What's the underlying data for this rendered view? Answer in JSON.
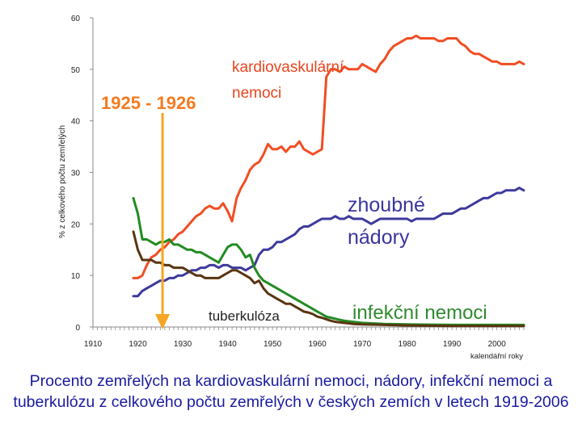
{
  "chart_data": {
    "type": "line",
    "ylabel": "% z celkového počtu zemřelých",
    "xlabel": "kalendářní roky",
    "xlim": [
      1910,
      2006
    ],
    "ylim": [
      0,
      60
    ],
    "x_ticks": [
      1910,
      1920,
      1930,
      1940,
      1950,
      1960,
      1970,
      1980,
      1990,
      2000
    ],
    "y_ticks": [
      0,
      10,
      20,
      30,
      40,
      50,
      60
    ],
    "grid": false,
    "legend": "none",
    "highlight": {
      "label": "1925 - 1926",
      "year": 1925.5,
      "color": "#f5a623"
    },
    "series": [
      {
        "key": "kardio",
        "color": "#f04e23",
        "points": [
          [
            1919,
            9.5
          ],
          [
            1920,
            9.5
          ],
          [
            1921,
            10
          ],
          [
            1922,
            12
          ],
          [
            1923,
            13.5
          ],
          [
            1924,
            14
          ],
          [
            1925,
            15
          ],
          [
            1926,
            15.5
          ],
          [
            1927,
            16.5
          ],
          [
            1928,
            17
          ],
          [
            1929,
            18
          ],
          [
            1930,
            18.5
          ],
          [
            1931,
            19.5
          ],
          [
            1932,
            20.5
          ],
          [
            1933,
            21.5
          ],
          [
            1934,
            22
          ],
          [
            1935,
            23
          ],
          [
            1936,
            23.5
          ],
          [
            1937,
            23
          ],
          [
            1938,
            23
          ],
          [
            1939,
            24
          ],
          [
            1940,
            22.5
          ],
          [
            1941,
            20.5
          ],
          [
            1942,
            25
          ],
          [
            1943,
            27
          ],
          [
            1944,
            28.5
          ],
          [
            1945,
            30.5
          ],
          [
            1946,
            31.5
          ],
          [
            1947,
            32
          ],
          [
            1948,
            33.5
          ],
          [
            1949,
            35.5
          ],
          [
            1950,
            34.5
          ],
          [
            1951,
            34.5
          ],
          [
            1952,
            35
          ],
          [
            1953,
            34
          ],
          [
            1954,
            35
          ],
          [
            1955,
            35
          ],
          [
            1956,
            36
          ],
          [
            1957,
            34.5
          ],
          [
            1958,
            34
          ],
          [
            1959,
            33.5
          ],
          [
            1960,
            34
          ],
          [
            1961,
            34.5
          ],
          [
            1962,
            48.5
          ],
          [
            1963,
            50
          ],
          [
            1964,
            50
          ],
          [
            1965,
            49.5
          ],
          [
            1966,
            50.5
          ],
          [
            1967,
            50
          ],
          [
            1968,
            50
          ],
          [
            1969,
            50
          ],
          [
            1970,
            51
          ],
          [
            1971,
            50.5
          ],
          [
            1972,
            50
          ],
          [
            1973,
            49.5
          ],
          [
            1974,
            51
          ],
          [
            1975,
            52
          ],
          [
            1976,
            53.5
          ],
          [
            1977,
            54.5
          ],
          [
            1978,
            55
          ],
          [
            1979,
            55.5
          ],
          [
            1980,
            56
          ],
          [
            1981,
            56
          ],
          [
            1982,
            56.5
          ],
          [
            1983,
            56
          ],
          [
            1984,
            56
          ],
          [
            1985,
            56
          ],
          [
            1986,
            56
          ],
          [
            1987,
            55.5
          ],
          [
            1988,
            55.5
          ],
          [
            1989,
            56
          ],
          [
            1990,
            56
          ],
          [
            1991,
            56
          ],
          [
            1992,
            55
          ],
          [
            1993,
            54.5
          ],
          [
            1994,
            53.5
          ],
          [
            1995,
            53
          ],
          [
            1996,
            53
          ],
          [
            1997,
            52.5
          ],
          [
            1998,
            52
          ],
          [
            1999,
            51.5
          ],
          [
            2000,
            51.5
          ],
          [
            2001,
            51
          ],
          [
            2002,
            51
          ],
          [
            2003,
            51
          ],
          [
            2004,
            51
          ],
          [
            2005,
            51.5
          ],
          [
            2006,
            51
          ]
        ]
      },
      {
        "key": "nadory",
        "color": "#3d3a9c",
        "points": [
          [
            1919,
            6
          ],
          [
            1920,
            6
          ],
          [
            1921,
            7
          ],
          [
            1922,
            7.5
          ],
          [
            1923,
            8
          ],
          [
            1924,
            8.5
          ],
          [
            1925,
            9
          ],
          [
            1926,
            9
          ],
          [
            1927,
            9.5
          ],
          [
            1928,
            9.5
          ],
          [
            1929,
            10
          ],
          [
            1930,
            10
          ],
          [
            1931,
            10.5
          ],
          [
            1932,
            11
          ],
          [
            1933,
            11
          ],
          [
            1934,
            11.5
          ],
          [
            1935,
            11.5
          ],
          [
            1936,
            12
          ],
          [
            1937,
            12
          ],
          [
            1938,
            11.5
          ],
          [
            1939,
            12
          ],
          [
            1940,
            12
          ],
          [
            1941,
            11.5
          ],
          [
            1942,
            11.5
          ],
          [
            1943,
            11.5
          ],
          [
            1944,
            11
          ],
          [
            1945,
            11.5
          ],
          [
            1946,
            12
          ],
          [
            1947,
            14
          ],
          [
            1948,
            15
          ],
          [
            1949,
            15
          ],
          [
            1950,
            15.5
          ],
          [
            1951,
            16.5
          ],
          [
            1952,
            16.5
          ],
          [
            1953,
            17
          ],
          [
            1954,
            17.5
          ],
          [
            1955,
            18
          ],
          [
            1956,
            19
          ],
          [
            1957,
            19.5
          ],
          [
            1958,
            19.5
          ],
          [
            1959,
            20
          ],
          [
            1960,
            20.5
          ],
          [
            1961,
            21
          ],
          [
            1962,
            21
          ],
          [
            1963,
            21
          ],
          [
            1964,
            21.5
          ],
          [
            1965,
            21
          ],
          [
            1966,
            21
          ],
          [
            1967,
            21.5
          ],
          [
            1968,
            21
          ],
          [
            1969,
            21
          ],
          [
            1970,
            21
          ],
          [
            1971,
            20.5
          ],
          [
            1972,
            20
          ],
          [
            1973,
            20.5
          ],
          [
            1974,
            21
          ],
          [
            1975,
            21
          ],
          [
            1976,
            21
          ],
          [
            1977,
            21
          ],
          [
            1978,
            21
          ],
          [
            1979,
            21
          ],
          [
            1980,
            21
          ],
          [
            1981,
            20.5
          ],
          [
            1982,
            21
          ],
          [
            1983,
            21
          ],
          [
            1984,
            21
          ],
          [
            1985,
            21
          ],
          [
            1986,
            21
          ],
          [
            1987,
            21.5
          ],
          [
            1988,
            22
          ],
          [
            1989,
            22
          ],
          [
            1990,
            22
          ],
          [
            1991,
            22.5
          ],
          [
            1992,
            23
          ],
          [
            1993,
            23
          ],
          [
            1994,
            23.5
          ],
          [
            1995,
            24
          ],
          [
            1996,
            24.5
          ],
          [
            1997,
            25
          ],
          [
            1998,
            25
          ],
          [
            1999,
            25.5
          ],
          [
            2000,
            26
          ],
          [
            2001,
            26
          ],
          [
            2002,
            26.5
          ],
          [
            2003,
            26.5
          ],
          [
            2004,
            26.5
          ],
          [
            2005,
            27
          ],
          [
            2006,
            26.5
          ]
        ]
      },
      {
        "key": "infekcni",
        "color": "#228b22",
        "points": [
          [
            1919,
            25
          ],
          [
            1920,
            22
          ],
          [
            1921,
            17
          ],
          [
            1922,
            17
          ],
          [
            1923,
            16.5
          ],
          [
            1924,
            16
          ],
          [
            1925,
            16.5
          ],
          [
            1926,
            16.5
          ],
          [
            1927,
            17
          ],
          [
            1928,
            16
          ],
          [
            1929,
            16
          ],
          [
            1930,
            15.5
          ],
          [
            1931,
            15
          ],
          [
            1932,
            15
          ],
          [
            1933,
            14.5
          ],
          [
            1934,
            14.5
          ],
          [
            1935,
            14
          ],
          [
            1936,
            13.5
          ],
          [
            1937,
            13
          ],
          [
            1938,
            12.5
          ],
          [
            1939,
            14
          ],
          [
            1940,
            15.5
          ],
          [
            1941,
            16
          ],
          [
            1942,
            16
          ],
          [
            1943,
            15
          ],
          [
            1944,
            13.5
          ],
          [
            1945,
            14
          ],
          [
            1946,
            11.5
          ],
          [
            1947,
            10
          ],
          [
            1948,
            9
          ],
          [
            1949,
            8.5
          ],
          [
            1950,
            8
          ],
          [
            1951,
            7.5
          ],
          [
            1952,
            7
          ],
          [
            1953,
            6.5
          ],
          [
            1954,
            6
          ],
          [
            1955,
            5.5
          ],
          [
            1956,
            5
          ],
          [
            1957,
            4.5
          ],
          [
            1958,
            4
          ],
          [
            1959,
            3.5
          ],
          [
            1960,
            3
          ],
          [
            1961,
            2.5
          ],
          [
            1962,
            2
          ],
          [
            1963,
            1.8
          ],
          [
            1964,
            1.6
          ],
          [
            1965,
            1.4
          ],
          [
            1966,
            1.2
          ],
          [
            1967,
            1.1
          ],
          [
            1968,
            1
          ],
          [
            1969,
            0.9
          ],
          [
            1970,
            0.8
          ],
          [
            1975,
            0.6
          ],
          [
            1980,
            0.5
          ],
          [
            1990,
            0.4
          ],
          [
            2000,
            0.4
          ],
          [
            2006,
            0.4
          ]
        ]
      },
      {
        "key": "tuberkuloza",
        "color": "#5a3511",
        "points": [
          [
            1919,
            18.5
          ],
          [
            1920,
            15
          ],
          [
            1921,
            13
          ],
          [
            1922,
            13
          ],
          [
            1923,
            13
          ],
          [
            1924,
            12.5
          ],
          [
            1925,
            12.5
          ],
          [
            1926,
            12
          ],
          [
            1927,
            12
          ],
          [
            1928,
            11.5
          ],
          [
            1929,
            11.5
          ],
          [
            1930,
            11.5
          ],
          [
            1931,
            11
          ],
          [
            1932,
            10.5
          ],
          [
            1933,
            10
          ],
          [
            1934,
            10
          ],
          [
            1935,
            9.5
          ],
          [
            1936,
            9.5
          ],
          [
            1937,
            9.5
          ],
          [
            1938,
            9.5
          ],
          [
            1939,
            10
          ],
          [
            1940,
            10.5
          ],
          [
            1941,
            11
          ],
          [
            1942,
            11
          ],
          [
            1943,
            10.5
          ],
          [
            1944,
            10
          ],
          [
            1945,
            9.5
          ],
          [
            1946,
            8.5
          ],
          [
            1947,
            9
          ],
          [
            1948,
            7.5
          ],
          [
            1949,
            6.5
          ],
          [
            1950,
            6
          ],
          [
            1951,
            5.5
          ],
          [
            1952,
            5
          ],
          [
            1953,
            4.5
          ],
          [
            1954,
            4.5
          ],
          [
            1955,
            4
          ],
          [
            1956,
            3.5
          ],
          [
            1957,
            3
          ],
          [
            1958,
            2.8
          ],
          [
            1959,
            2.5
          ],
          [
            1960,
            2
          ],
          [
            1961,
            1.8
          ],
          [
            1962,
            1.5
          ],
          [
            1963,
            1.2
          ],
          [
            1964,
            1
          ],
          [
            1965,
            0.9
          ],
          [
            1966,
            0.8
          ],
          [
            1967,
            0.7
          ],
          [
            1968,
            0.6
          ],
          [
            1970,
            0.5
          ],
          [
            1975,
            0.4
          ],
          [
            1980,
            0.3
          ],
          [
            1990,
            0.2
          ],
          [
            2000,
            0.2
          ],
          [
            2006,
            0.2
          ]
        ]
      }
    ]
  },
  "annotations": {
    "highlight_label": "1925 - 1926",
    "kardio_line1": "kardiovaskulární",
    "kardio_line2": "nemoci",
    "nadory_line1": "zhoubné",
    "nadory_line2": "nádory",
    "infekcni": "infekční nemoci",
    "tuberkuloza": "tuberkulóza"
  },
  "caption": "Procento zemřelých na kardiovaskulární nemoci, nádory, infekční nemoci a tuberkulózu z celkového počtu zemřelých v českých zemích v letech 1919-2006"
}
